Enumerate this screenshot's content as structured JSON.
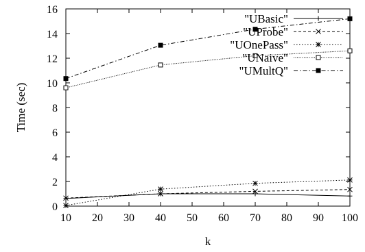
{
  "chart_data": {
    "type": "line",
    "title": "",
    "xlabel": "k",
    "ylabel": "Time (sec)",
    "xlim": [
      10,
      100
    ],
    "ylim": [
      0,
      16
    ],
    "xticks": [
      "10",
      "20",
      "30",
      "40",
      "50",
      "60",
      "70",
      "80",
      "90",
      "100"
    ],
    "yticks": [
      "0",
      "2",
      "4",
      "6",
      "8",
      "10",
      "12",
      "14",
      "16"
    ],
    "legend_position": "top-right",
    "grid": false,
    "x": [
      10,
      40,
      70,
      100
    ],
    "series": [
      {
        "name": "\"UBasic\"",
        "values": [
          0.62,
          1.0,
          1.0,
          0.82
        ],
        "marker": "plus",
        "dash": "solid"
      },
      {
        "name": "\"UProbe\"",
        "values": [
          0.65,
          1.0,
          1.2,
          1.35
        ],
        "marker": "x",
        "dash": "dashed"
      },
      {
        "name": "\"UOnePass\"",
        "values": [
          0.05,
          1.38,
          1.85,
          2.12
        ],
        "marker": "star",
        "dash": "dotted"
      },
      {
        "name": "\"UNaive\"",
        "values": [
          9.6,
          11.45,
          12.2,
          12.6
        ],
        "marker": "square-open",
        "dash": "densely-dotted"
      },
      {
        "name": "\"UMultQ\"",
        "values": [
          10.35,
          13.05,
          14.35,
          15.2
        ],
        "marker": "square-filled",
        "dash": "dash-dot"
      }
    ]
  }
}
